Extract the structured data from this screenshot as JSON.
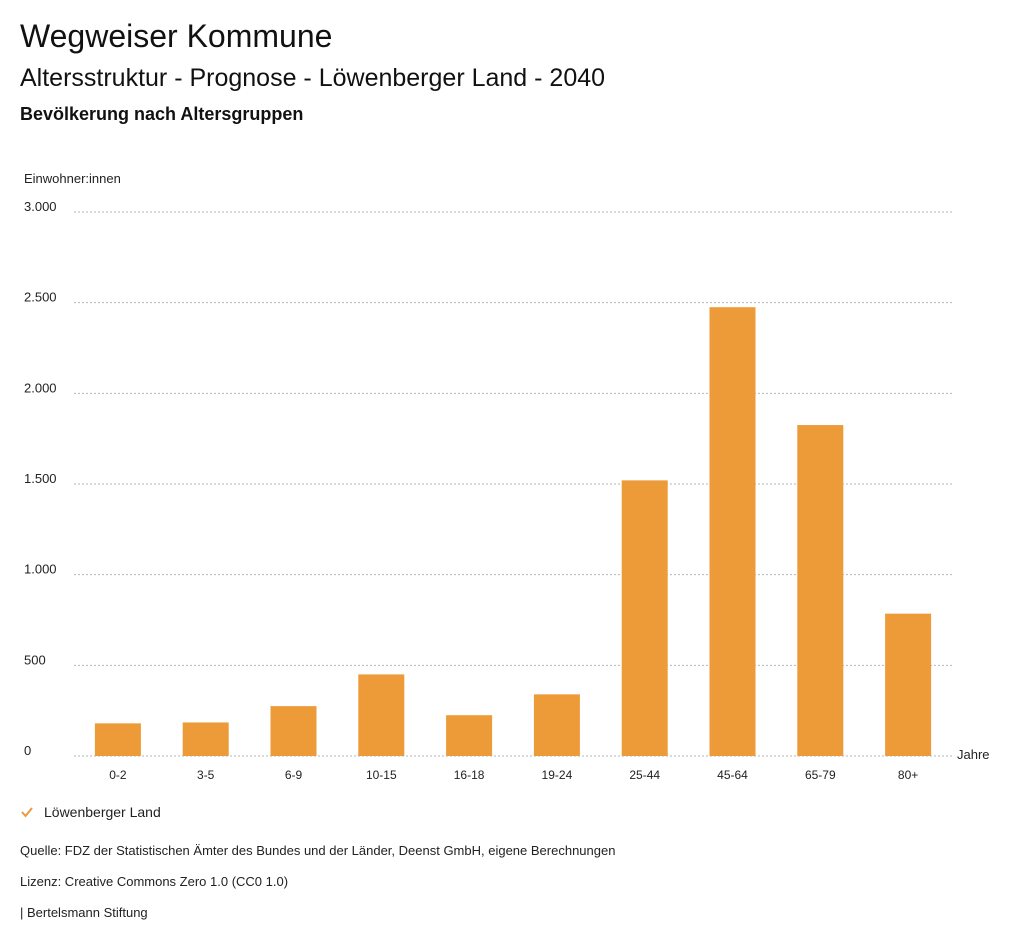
{
  "header": {
    "brand": "Wegweiser Kommune",
    "subtitle": "Altersstruktur - Prognose - Löwenberger Land - 2040",
    "heading": "Bevölkerung nach Altersgruppen"
  },
  "chart_data": {
    "type": "bar",
    "title": "Bevölkerung nach Altersgruppen",
    "ylabel": "Einwohner:innen",
    "xlabel": "Jahre",
    "ylim": [
      0,
      3000
    ],
    "yticks": [
      0,
      500,
      1000,
      1500,
      2000,
      2500,
      3000
    ],
    "ytick_labels": [
      "0",
      "500",
      "1.000",
      "1.500",
      "2.000",
      "2.500",
      "3.000"
    ],
    "grid": true,
    "categories": [
      "0-2",
      "3-5",
      "6-9",
      "10-15",
      "16-18",
      "19-24",
      "25-44",
      "45-64",
      "65-79",
      "80+"
    ],
    "series": [
      {
        "name": "Löwenberger Land",
        "color": "#ed9a38",
        "values": [
          180,
          185,
          275,
          450,
          225,
          340,
          1520,
          2475,
          1825,
          785
        ]
      }
    ]
  },
  "legend": {
    "label": "Löwenberger Land",
    "color": "#ed9a38"
  },
  "footer": {
    "source": "Quelle: FDZ der Statistischen Ämter des Bundes und der Länder, Deenst GmbH, eigene Berechnungen",
    "license": "Lizenz: Creative Commons Zero 1.0 (CC0 1.0)",
    "publisher": "| Bertelsmann Stiftung"
  }
}
